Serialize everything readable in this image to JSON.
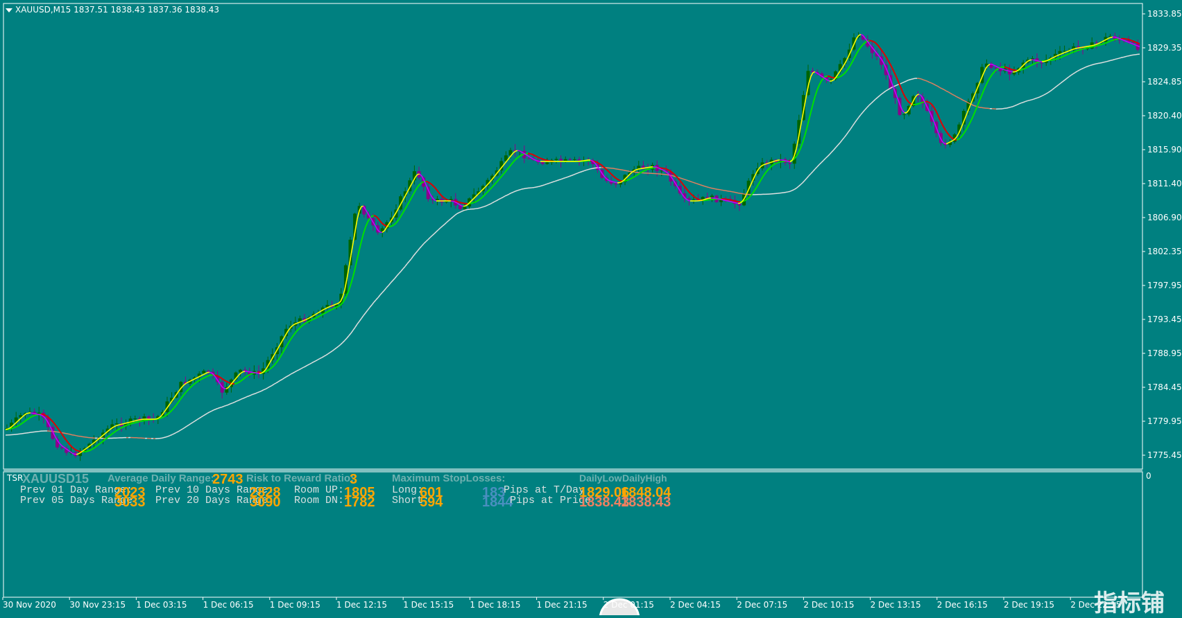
{
  "window": {
    "header": "XAUUSD,M15  1837.51 1838.43 1837.36 1838.43",
    "collapse_icon": "triangle-down-icon"
  },
  "price_axis": [
    "1833.85",
    "1829.35",
    "1824.85",
    "1820.40",
    "1815.90",
    "1811.40",
    "1806.90",
    "1802.35",
    "1797.95",
    "1793.45",
    "1788.95",
    "1784.45",
    "1779.95",
    "1775.45"
  ],
  "subwindow_axis": "0",
  "time_axis": [
    "30 Nov 2020",
    "30 Nov 23:15",
    "1 Dec 03:15",
    "1 Dec 06:15",
    "1 Dec 09:15",
    "1 Dec 12:15",
    "1 Dec 15:15",
    "1 Dec 18:15",
    "1 Dec 21:15",
    "2 Dec 01:15",
    "2 Dec 04:15",
    "2 Dec 07:15",
    "2 Dec 10:15",
    "2 Dec 13:15",
    "2 Dec 16:15",
    "2 Dec 19:15",
    "2 Dec 22:15"
  ],
  "indicator": {
    "name": "TSR",
    "symbol": "XAUUSD15",
    "adr_label": "Average Daily Range:",
    "adr_value": "2743",
    "rr_label": "Risk to Reward Ratio:",
    "rr_value": "3",
    "maxsl_label": "Maximum StopLosses:",
    "dailylow_label": "DailyLow",
    "dailyhigh_label": "DailyHigh",
    "prev01_label": "Prev 01 Day Range:",
    "prev01_value": "2023",
    "prev05_label": "Prev 05 Days Range:",
    "prev05_value": "3033",
    "prev10_label": "Prev 10 Days Range:",
    "prev10_value": "2828",
    "prev20_label": "Prev 20 Days Range:",
    "prev20_value": "3090",
    "roomup_label": "Room UP:",
    "roomup_value": "1805",
    "roomdn_label": "Room DN:",
    "roomdn_value": "1782",
    "long_label": "Long:",
    "long_value": "601",
    "short_label": "Short:",
    "short_value": "594",
    "long_blue": "183",
    "short_blue": "1844",
    "pips_tday_label": "Pips at T/Day",
    "pips_price_label": "Pips at Price",
    "tday_low": "1829.06",
    "tday_high": "1848.04",
    "price_low": "1838.43",
    "price_high": "1838.43"
  },
  "watermark": "指标铺",
  "colors": {
    "background": "#008080",
    "bull_candle": "#006400",
    "bear_candle": "#8b008b",
    "ma_up_fast": "#ffff00",
    "ma_down_fast": "#c000ff",
    "ma_up_slow": "#00e000",
    "ma_down_slow": "#e00000",
    "long_ma": "#e0e0e0",
    "long_ma_alt": "#e08060"
  }
}
